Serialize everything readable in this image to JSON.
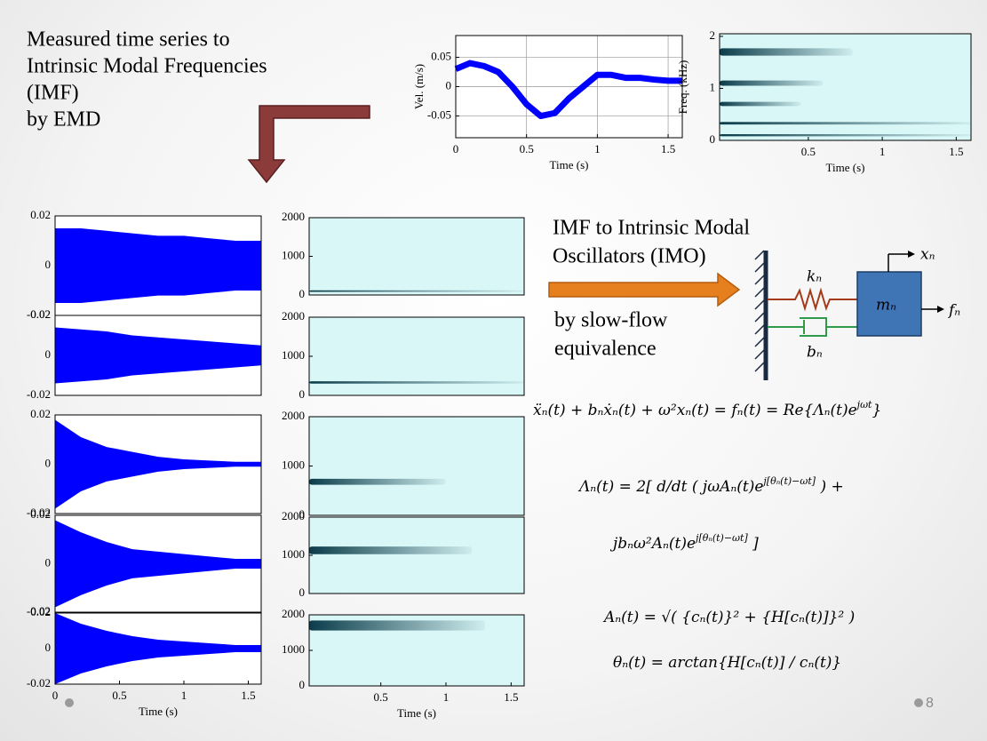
{
  "intro": [
    "Measured time series to",
    "Intrinsic Modal Frequencies",
    "(IMF)",
    "by EMD"
  ],
  "imo_heading": [
    "IMF to Intrinsic Modal",
    "Oscillators (IMO)"
  ],
  "imo_subheading": [
    "by slow-flow",
    "equivalence"
  ],
  "diagram": {
    "spring": "kₙ",
    "damper": "bₙ",
    "mass": "mₙ",
    "displacement": "xₙ",
    "force": "fₙ"
  },
  "equations": [
    [
      "ẍₙ(t) + bₙẋₙ(t) + ω²xₙ(t) = fₙ(t) = Re{Λₙ(t)e",
      {
        "sup": "jωt"
      },
      "}"
    ],
    [
      "Λₙ(t) = 2[ d/dt ( jωAₙ(t)e",
      {
        "sup": "j[θₙ(t)−ωt]"
      },
      " ) +"
    ],
    [
      "jbₙω²Aₙ(t)e",
      {
        "sup": "j[θₙ(t)−ωt]"
      },
      " ]"
    ],
    [
      "Aₙ(t) = √( {cₙ(t)}² + {H[cₙ(t)]}² )"
    ],
    [
      "θₙ(t) = arctan{H[cₙ(t)] / cₙ(t)}"
    ]
  ],
  "slide_number": "8",
  "chart_data": [
    {
      "type": "line",
      "xlabel": "Time (s)",
      "ylabel": "Vel. (m/s)",
      "xlim": [
        0,
        1.6
      ],
      "ylim": [
        -0.087,
        0.087
      ],
      "xticks": [
        0,
        0.5,
        1,
        1.5
      ],
      "yticks": [
        -0.05,
        0,
        0.05
      ],
      "grid": true,
      "color": "#0000ff",
      "x": [
        0,
        0.1,
        0.2,
        0.3,
        0.4,
        0.5,
        0.6,
        0.7,
        0.8,
        0.9,
        1.0,
        1.1,
        1.2,
        1.3,
        1.4,
        1.5,
        1.6
      ],
      "values": [
        0.03,
        0.04,
        0.035,
        0.025,
        0.0,
        -0.03,
        -0.05,
        -0.045,
        -0.02,
        0.0,
        0.02,
        0.02,
        0.015,
        0.015,
        0.012,
        0.01,
        0.01
      ]
    },
    {
      "type": "spectrogram",
      "xlabel": "Time (s)",
      "ylabel": "Freq. (kHz)",
      "xlim": [
        -0.1,
        1.6
      ],
      "ylim": [
        0,
        2.05
      ],
      "xticks": [
        0.5,
        1,
        1.5
      ],
      "yticks": [
        0,
        1,
        2
      ],
      "background": "#d9f7f7",
      "color": "#0b3c4a",
      "ridges": [
        {
          "y": 1.7,
          "x_end": 0.8,
          "bandwidth": 0.14
        },
        {
          "y": 1.1,
          "x_end": 0.6,
          "bandwidth": 0.1
        },
        {
          "y": 0.7,
          "x_end": 0.45,
          "bandwidth": 0.08
        },
        {
          "y": 0.33,
          "x_end": 1.6,
          "bandwidth": 0.05
        },
        {
          "y": 0.1,
          "x_end": 1.6,
          "bandwidth": 0.04
        }
      ]
    },
    {
      "type": "envelope",
      "xlim": [
        0,
        1.6
      ],
      "ylim": [
        -0.02,
        0.02
      ],
      "yticks": [
        -0.02,
        0,
        0.02
      ],
      "color": "#0000ff",
      "x": [
        0,
        0.2,
        0.4,
        0.6,
        0.8,
        1.0,
        1.2,
        1.4,
        1.6
      ],
      "values": [
        0.015,
        0.015,
        0.014,
        0.013,
        0.012,
        0.012,
        0.011,
        0.01,
        0.01
      ]
    },
    {
      "type": "envelope",
      "xlim": [
        0,
        1.6
      ],
      "ylim": [
        -0.02,
        0.02
      ],
      "yticks": [
        -0.02,
        0,
        0.02
      ],
      "color": "#0000ff",
      "x": [
        0,
        0.2,
        0.4,
        0.6,
        0.8,
        1.0,
        1.2,
        1.4,
        1.6
      ],
      "values": [
        0.014,
        0.013,
        0.012,
        0.01,
        0.009,
        0.008,
        0.007,
        0.006,
        0.005
      ]
    },
    {
      "type": "envelope",
      "xlim": [
        0,
        1.6
      ],
      "ylim": [
        -0.02,
        0.02
      ],
      "yticks": [
        -0.02,
        0,
        0.02
      ],
      "color": "#0000ff",
      "x": [
        0,
        0.2,
        0.4,
        0.6,
        0.8,
        1.0,
        1.2,
        1.4,
        1.6
      ],
      "values": [
        0.018,
        0.011,
        0.007,
        0.005,
        0.003,
        0.002,
        0.0015,
        0.001,
        0.001
      ]
    },
    {
      "type": "envelope",
      "xlim": [
        0,
        1.6
      ],
      "ylim": [
        -0.02,
        0.02
      ],
      "yticks": [
        -0.02,
        0,
        0.02
      ],
      "color": "#0000ff",
      "x": [
        0,
        0.2,
        0.4,
        0.6,
        0.8,
        1.0,
        1.2,
        1.4,
        1.6
      ],
      "values": [
        0.018,
        0.013,
        0.009,
        0.006,
        0.005,
        0.004,
        0.003,
        0.002,
        0.002
      ]
    },
    {
      "type": "envelope",
      "xlabel": "Time (s)",
      "xlim": [
        0,
        1.6
      ],
      "ylim": [
        -0.02,
        0.02
      ],
      "xticks": [
        0,
        0.5,
        1,
        1.5
      ],
      "yticks": [
        -0.02,
        0,
        0.02
      ],
      "color": "#0000ff",
      "x": [
        0,
        0.2,
        0.4,
        0.6,
        0.8,
        1.0,
        1.2,
        1.4,
        1.6
      ],
      "values": [
        0.02,
        0.014,
        0.01,
        0.007,
        0.005,
        0.004,
        0.003,
        0.002,
        0.002
      ]
    },
    {
      "type": "spectrogram",
      "xlim": [
        -0.05,
        1.6
      ],
      "ylim": [
        0,
        2000
      ],
      "yticks": [
        0,
        1000,
        2000
      ],
      "background": "#d9f7f7",
      "color": "#0b3c4a",
      "ridges": [
        {
          "y": 100,
          "x_end": 1.6,
          "bandwidth": 40
        }
      ]
    },
    {
      "type": "spectrogram",
      "xlim": [
        -0.05,
        1.6
      ],
      "ylim": [
        0,
        2000
      ],
      "yticks": [
        0,
        1000,
        2000
      ],
      "background": "#d9f7f7",
      "color": "#0b3c4a",
      "ridges": [
        {
          "y": 330,
          "x_end": 1.6,
          "bandwidth": 60
        }
      ]
    },
    {
      "type": "spectrogram",
      "xlim": [
        -0.05,
        1.6
      ],
      "ylim": [
        0,
        2000
      ],
      "yticks": [
        0,
        1000,
        2000
      ],
      "background": "#d9f7f7",
      "color": "#0b3c4a",
      "ridges": [
        {
          "y": 680,
          "x_end": 1.0,
          "bandwidth": 120
        }
      ]
    },
    {
      "type": "spectrogram",
      "xlim": [
        -0.05,
        1.6
      ],
      "ylim": [
        0,
        2000
      ],
      "yticks": [
        0,
        1000,
        2000
      ],
      "background": "#d9f7f7",
      "color": "#0b3c4a",
      "ridges": [
        {
          "y": 1130,
          "x_end": 1.2,
          "bandwidth": 200
        }
      ]
    },
    {
      "type": "spectrogram",
      "xlabel": "Time (s)",
      "xlim": [
        -0.05,
        1.6
      ],
      "ylim": [
        0,
        2000
      ],
      "xticks": [
        0.5,
        1,
        1.5
      ],
      "yticks": [
        0,
        1000,
        2000
      ],
      "background": "#d9f7f7",
      "color": "#0b3c4a",
      "ridges": [
        {
          "y": 1700,
          "x_end": 1.3,
          "bandwidth": 280
        }
      ]
    }
  ]
}
